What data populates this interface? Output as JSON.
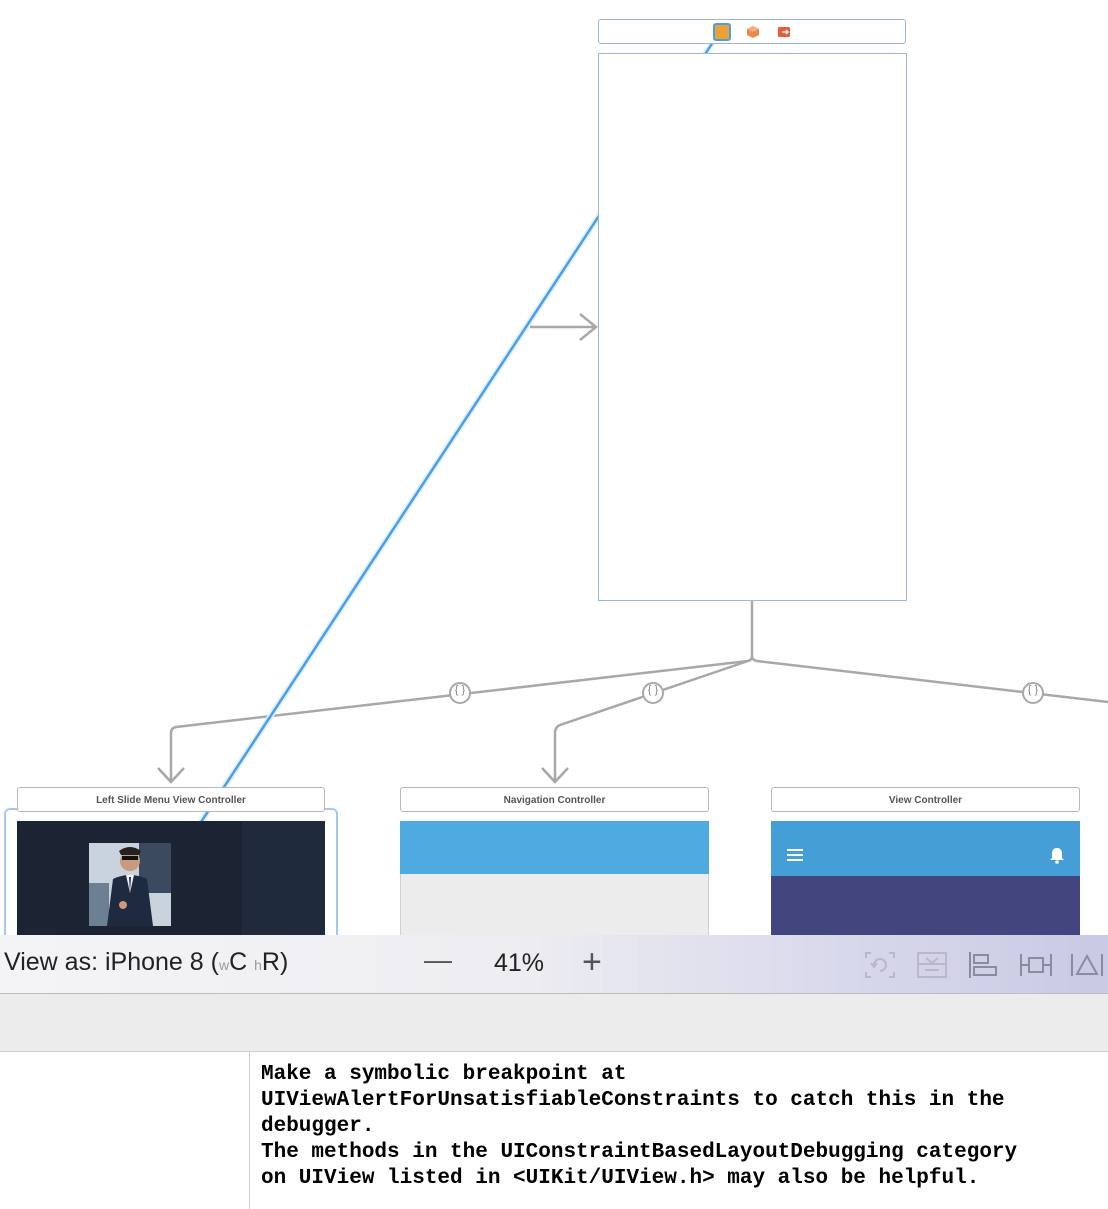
{
  "scenes": [
    {
      "id": "left",
      "title": "Left Slide Menu View Controller"
    },
    {
      "id": "nav",
      "title": "Navigation Controller"
    },
    {
      "id": "vc",
      "title": "View Controller"
    }
  ],
  "segue_icon_label": "{ }",
  "bottom_bar": {
    "view_as_prefix": "View as: iPhone 8 (",
    "size_w": "w",
    "size_c": "C",
    "size_h": "h",
    "size_r": "R",
    "view_as_suffix": ")",
    "zoom_minus": "—",
    "zoom_value": "41%",
    "zoom_plus": "+"
  },
  "console": {
    "text": "Make a symbolic breakpoint at\nUIViewAlertForUnsatisfiableConstraints to catch this in the\ndebugger.\nThe methods in the UIConstraintBasedLayoutDebugging category\non UIView listed in <UIKit/UIView.h> may also be helpful."
  },
  "colors": {
    "connection_line": "#4a9fe8",
    "nav_bar": "#4eaadf",
    "nav_body": "#ececec",
    "vc_header": "#459fd6",
    "vc_body": "#43457e",
    "menu_bg": "#1c2433"
  }
}
